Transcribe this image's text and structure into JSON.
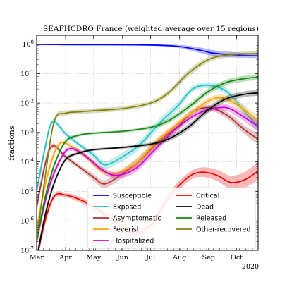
{
  "chart_data": {
    "type": "line",
    "title": "SEAFHCDRO France (weighted average over 15 regions)",
    "xlabel": "",
    "ylabel": "fractions",
    "year_label": "2020",
    "y_scale": "log",
    "ylim": [
      1e-07,
      2
    ],
    "xlim": [
      "2020-03-01",
      "2020-10-24"
    ],
    "grid": true,
    "legend_position": "bottom-right",
    "x_ticks": [
      "Mar",
      "Apr",
      "May",
      "Jun",
      "Jul",
      "Aug",
      "Sep",
      "Oct"
    ],
    "x_tick_dates": [
      "2020-03-01",
      "2020-04-01",
      "2020-05-01",
      "2020-06-01",
      "2020-07-01",
      "2020-08-01",
      "2020-09-01",
      "2020-10-01"
    ],
    "y_ticks": [
      "10^{0}",
      "10^{-1}",
      "10^{-2}",
      "10^{-3}",
      "10^{-4}",
      "10^{-5}",
      "10^{-6}",
      "10^{-7}"
    ],
    "y_tick_values": [
      1,
      0.1,
      0.01,
      0.001,
      0.0001,
      1e-05,
      1e-06,
      1e-07
    ],
    "series": [
      {
        "name": "Susceptible",
        "color": "#0000ff",
        "x": [
          "2020-03-01",
          "2020-04-01",
          "2020-05-01",
          "2020-06-01",
          "2020-07-01",
          "2020-07-25",
          "2020-08-10",
          "2020-08-25",
          "2020-09-05",
          "2020-09-20",
          "2020-10-05",
          "2020-10-24"
        ],
        "y": [
          0.98,
          0.96,
          0.955,
          0.95,
          0.93,
          0.87,
          0.75,
          0.6,
          0.5,
          0.45,
          0.42,
          0.4
        ],
        "band": [
          1.05,
          1.05,
          1.05,
          1.05,
          1.06,
          1.1,
          1.18,
          1.25,
          1.27,
          1.25,
          1.22,
          1.2
        ]
      },
      {
        "name": "Exposed",
        "color": "#20c0c0",
        "x": [
          "2020-03-01",
          "2020-03-10",
          "2020-03-18",
          "2020-04-01",
          "2020-04-15",
          "2020-05-01",
          "2020-05-13",
          "2020-06-01",
          "2020-06-20",
          "2020-07-10",
          "2020-07-30",
          "2020-08-15",
          "2020-09-01",
          "2020-09-20",
          "2020-10-10",
          "2020-10-24"
        ],
        "y": [
          1e-05,
          0.0003,
          0.0023,
          0.0009,
          0.0004,
          0.00017,
          8e-05,
          0.00015,
          0.0004,
          0.002,
          0.008,
          0.03,
          0.04,
          0.025,
          0.005,
          0.0015
        ],
        "band": [
          1.6,
          1.5,
          1.2,
          1.2,
          1.2,
          1.3,
          1.35,
          1.4,
          1.4,
          1.4,
          1.35,
          1.25,
          1.25,
          1.3,
          1.4,
          1.5
        ]
      },
      {
        "name": "Asymptomatic",
        "color": "#aa3333",
        "x": [
          "2020-03-01",
          "2020-03-10",
          "2020-03-18",
          "2020-04-01",
          "2020-04-15",
          "2020-05-01",
          "2020-05-13",
          "2020-06-01",
          "2020-06-20",
          "2020-07-10",
          "2020-07-30",
          "2020-08-15",
          "2020-09-01",
          "2020-09-20",
          "2020-10-10",
          "2020-10-24"
        ],
        "y": [
          3e-06,
          8e-05,
          0.00035,
          0.00015,
          7e-05,
          3e-05,
          1.8e-05,
          4e-05,
          0.00012,
          0.0005,
          0.0016,
          0.005,
          0.007,
          0.004,
          0.0012,
          0.0006
        ],
        "band": [
          1.6,
          1.5,
          1.2,
          1.2,
          1.2,
          1.3,
          1.35,
          1.4,
          1.4,
          1.4,
          1.35,
          1.25,
          1.25,
          1.3,
          1.4,
          1.5
        ]
      },
      {
        "name": "Feverish",
        "color": "#ffa500",
        "x": [
          "2020-03-01",
          "2020-03-12",
          "2020-03-25",
          "2020-04-10",
          "2020-04-25",
          "2020-05-10",
          "2020-05-25",
          "2020-06-15",
          "2020-07-05",
          "2020-07-25",
          "2020-08-15",
          "2020-09-01",
          "2020-09-15",
          "2020-10-01",
          "2020-10-24"
        ],
        "y": [
          5e-07,
          3e-05,
          0.0004,
          0.0003,
          0.00013,
          5e-05,
          4e-05,
          9e-05,
          0.0004,
          0.0015,
          0.005,
          0.012,
          0.015,
          0.009,
          0.0025
        ],
        "band": [
          1.6,
          1.5,
          1.2,
          1.2,
          1.25,
          1.3,
          1.3,
          1.35,
          1.35,
          1.3,
          1.25,
          1.25,
          1.3,
          1.35,
          1.5
        ]
      },
      {
        "name": "Hospitalized",
        "color": "#cc00cc",
        "x": [
          "2020-03-01",
          "2020-03-12",
          "2020-03-25",
          "2020-04-05",
          "2020-04-20",
          "2020-05-10",
          "2020-05-25",
          "2020-06-15",
          "2020-07-05",
          "2020-07-25",
          "2020-08-15",
          "2020-09-01",
          "2020-09-20",
          "2020-10-05",
          "2020-10-24"
        ],
        "y": [
          2e-07,
          8e-06,
          0.0001,
          0.00028,
          0.00018,
          5.5e-05,
          3.5e-05,
          6e-05,
          0.00025,
          0.0011,
          0.0035,
          0.006,
          0.007,
          0.004,
          0.0016
        ],
        "band": [
          1.6,
          1.5,
          1.25,
          1.2,
          1.2,
          1.25,
          1.3,
          1.35,
          1.35,
          1.3,
          1.25,
          1.25,
          1.3,
          1.35,
          1.5
        ]
      },
      {
        "name": "Critical",
        "color": "#ee0000",
        "x": [
          "2020-03-01",
          "2020-03-10",
          "2020-03-20",
          "2020-04-01",
          "2020-04-15",
          "2020-05-01",
          "2020-05-20",
          "2020-06-10",
          "2020-07-01",
          "2020-07-20",
          "2020-08-10",
          "2020-08-25",
          "2020-09-10",
          "2020-09-25",
          "2020-10-10",
          "2020-10-24"
        ],
        "y": [
          5e-08,
          1e-06,
          7e-06,
          7.5e-06,
          5.5e-06,
          3e-06,
          1.2e-06,
          4e-07,
          7e-07,
          6e-06,
          3e-05,
          4.5e-05,
          3.5e-05,
          2e-05,
          2.5e-05,
          5e-05
        ],
        "band": [
          1.6,
          1.5,
          1.25,
          1.2,
          1.25,
          1.3,
          1.35,
          1.4,
          1.45,
          1.45,
          1.4,
          1.45,
          1.55,
          1.7,
          1.85,
          2.0
        ]
      },
      {
        "name": "Dead",
        "color": "#000000",
        "x": [
          "2020-03-01",
          "2020-03-10",
          "2020-03-20",
          "2020-04-01",
          "2020-04-15",
          "2020-05-01",
          "2020-06-01",
          "2020-07-01",
          "2020-07-20",
          "2020-08-10",
          "2020-09-01",
          "2020-09-20",
          "2020-10-10",
          "2020-10-24"
        ],
        "y": [
          5e-08,
          1.5e-06,
          2e-05,
          0.00012,
          0.0002,
          0.00026,
          0.00031,
          0.0004,
          0.0006,
          0.0015,
          0.006,
          0.014,
          0.02,
          0.022
        ],
        "band": [
          1.5,
          1.4,
          1.25,
          1.15,
          1.12,
          1.1,
          1.1,
          1.15,
          1.2,
          1.25,
          1.25,
          1.25,
          1.25,
          1.25
        ]
      },
      {
        "name": "Released",
        "color": "#118811",
        "x": [
          "2020-03-01",
          "2020-03-10",
          "2020-03-20",
          "2020-04-01",
          "2020-04-15",
          "2020-05-01",
          "2020-06-01",
          "2020-07-01",
          "2020-07-20",
          "2020-08-10",
          "2020-09-01",
          "2020-09-20",
          "2020-10-10",
          "2020-10-24"
        ],
        "y": [
          2e-07,
          6e-06,
          8e-05,
          0.0005,
          0.0008,
          0.00095,
          0.0011,
          0.0015,
          0.0025,
          0.007,
          0.025,
          0.05,
          0.068,
          0.075
        ],
        "band": [
          1.5,
          1.4,
          1.25,
          1.15,
          1.12,
          1.1,
          1.1,
          1.15,
          1.2,
          1.25,
          1.25,
          1.25,
          1.25,
          1.25
        ]
      },
      {
        "name": "Other-recovered",
        "color": "#808010",
        "x": [
          "2020-03-01",
          "2020-03-10",
          "2020-03-20",
          "2020-04-01",
          "2020-04-15",
          "2020-05-01",
          "2020-06-01",
          "2020-07-01",
          "2020-07-20",
          "2020-08-10",
          "2020-09-01",
          "2020-09-20",
          "2020-10-10",
          "2020-10-24"
        ],
        "y": [
          2e-07,
          3e-05,
          0.0025,
          0.0045,
          0.005,
          0.0055,
          0.0065,
          0.01,
          0.022,
          0.1,
          0.3,
          0.42,
          0.47,
          0.48
        ],
        "band": [
          1.5,
          1.4,
          1.25,
          1.2,
          1.2,
          1.2,
          1.2,
          1.2,
          1.25,
          1.3,
          1.25,
          1.2,
          1.18,
          1.18
        ]
      }
    ]
  }
}
